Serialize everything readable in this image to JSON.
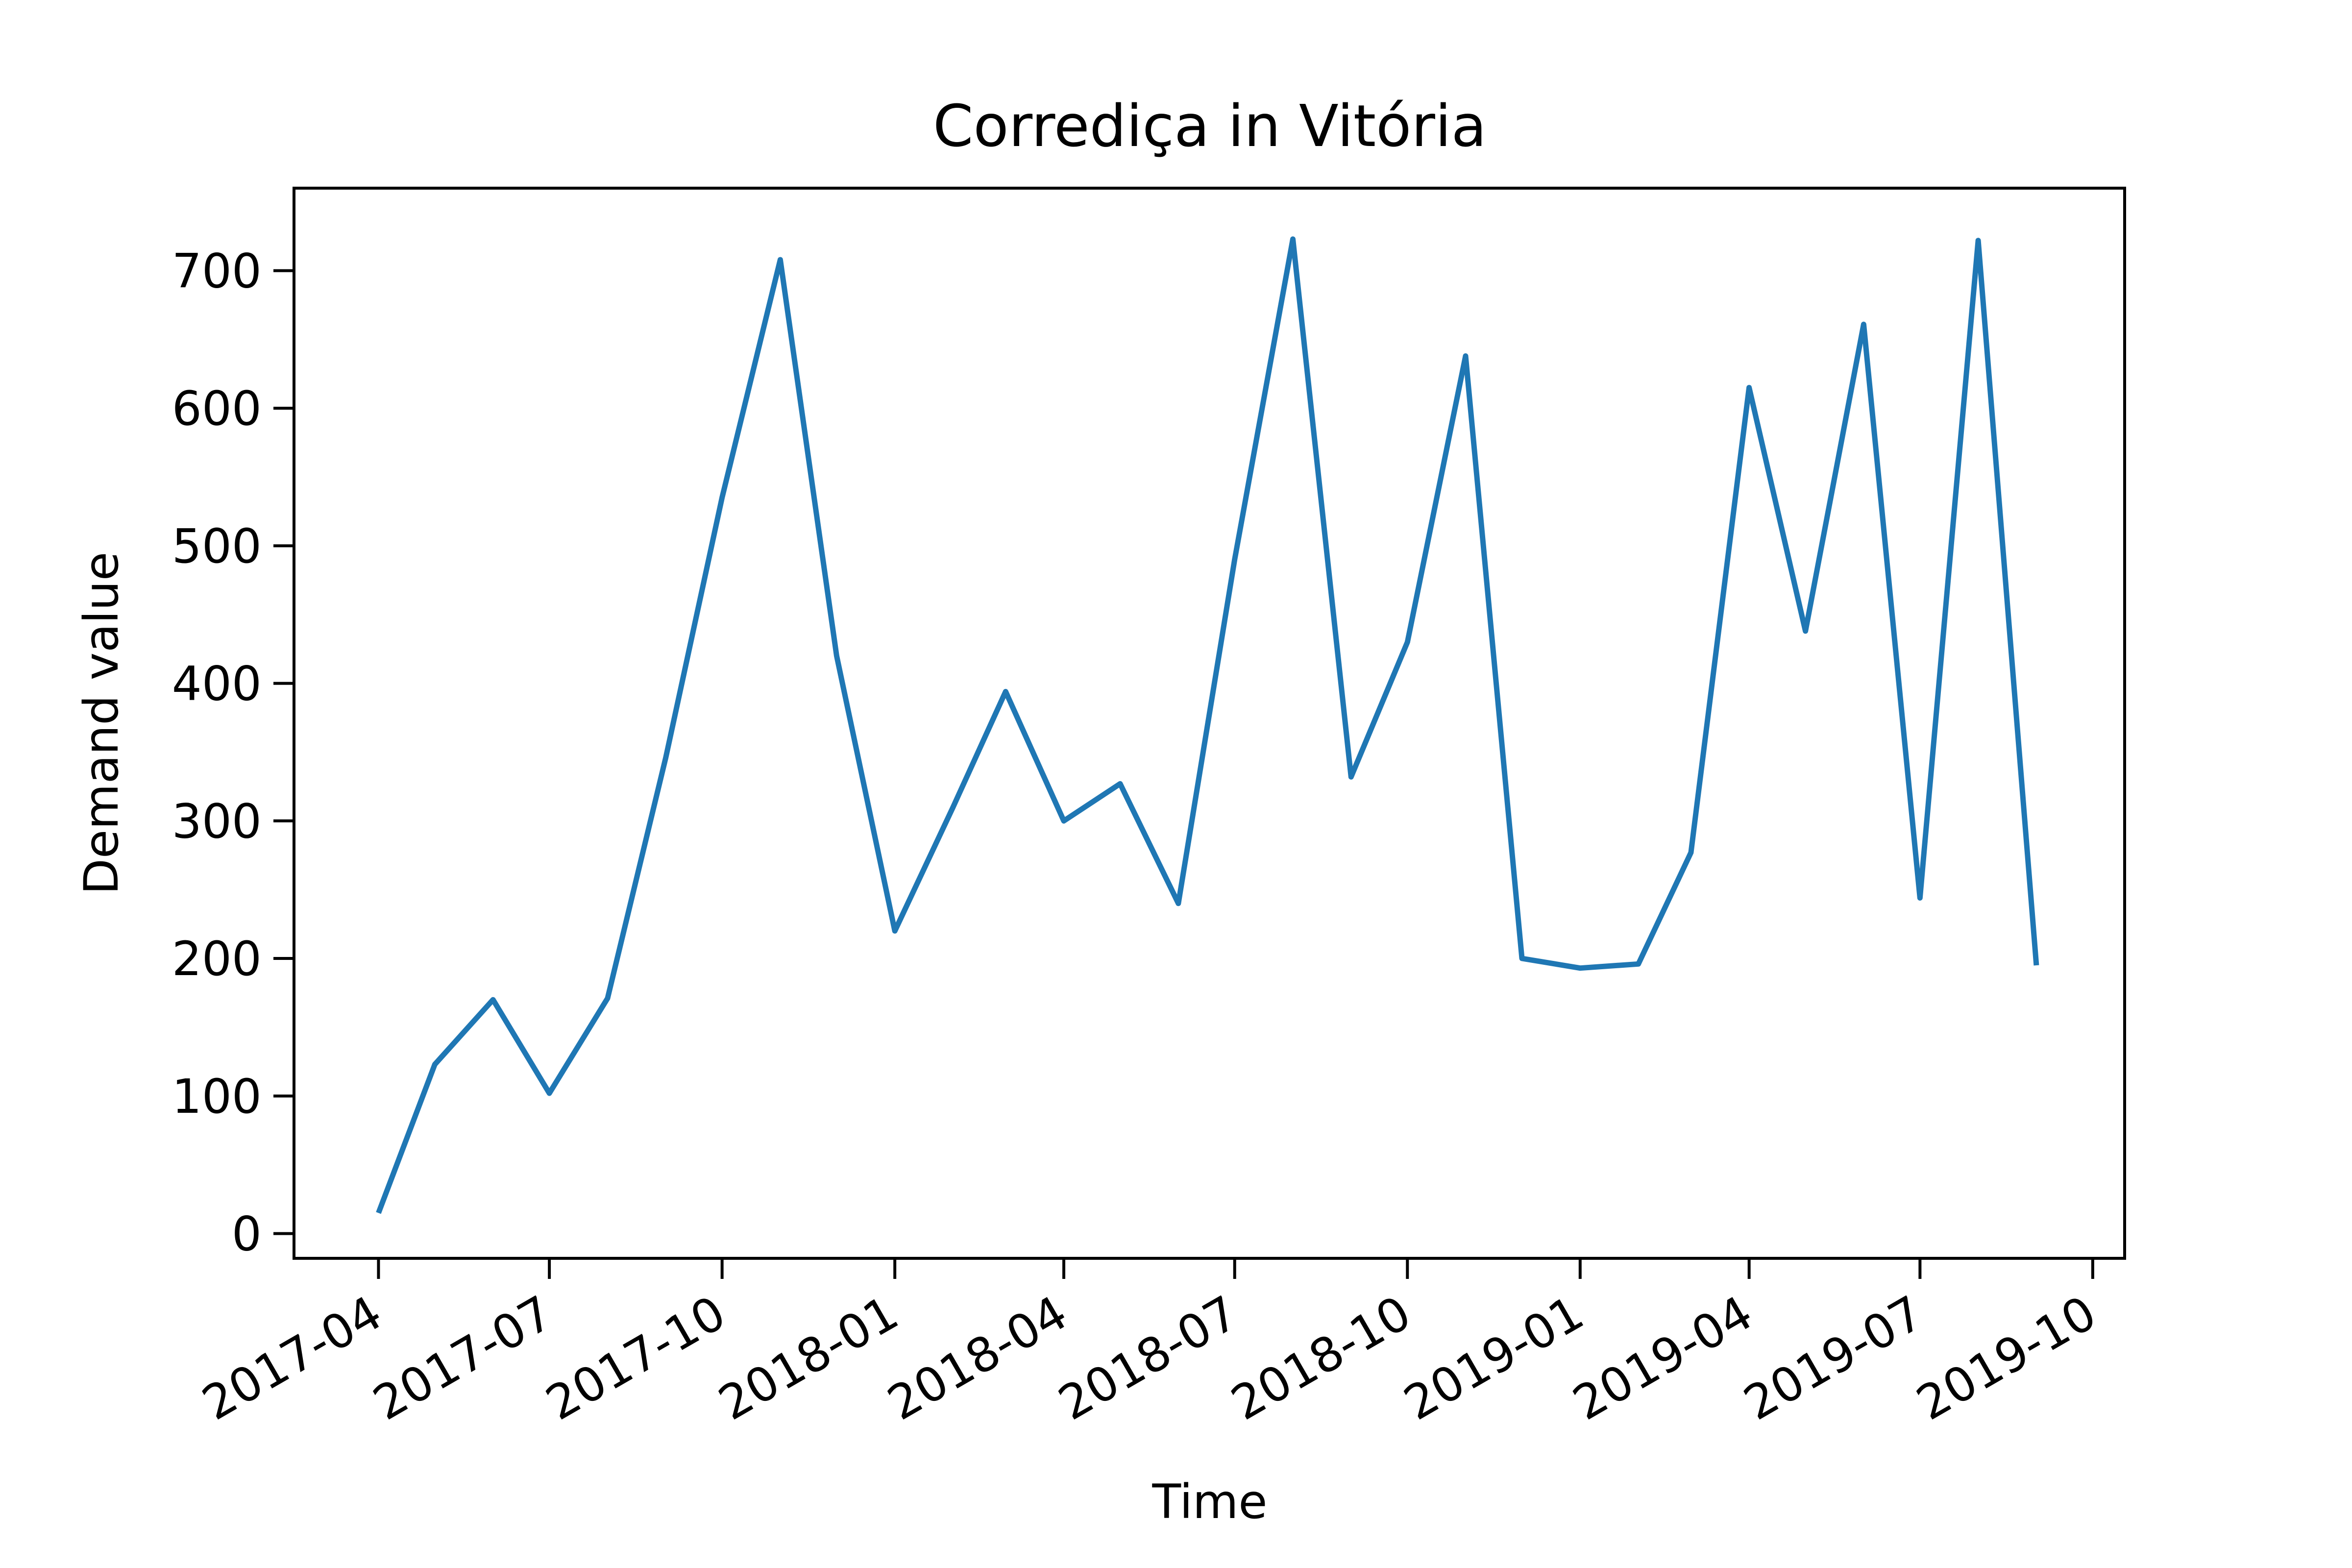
{
  "chart_data": {
    "type": "line",
    "title": "Corrediça in Vitória",
    "xlabel": "Time",
    "ylabel": "Demand value",
    "x_tick_labels": [
      "2017-04",
      "2017-07",
      "2017-10",
      "2018-01",
      "2018-04",
      "2018-07",
      "2018-10",
      "2019-01",
      "2019-04",
      "2019-07",
      "2019-10"
    ],
    "y_ticks": [
      0,
      100,
      200,
      300,
      400,
      500,
      600,
      700
    ],
    "y_tick_labels": [
      "0",
      "100",
      "200",
      "300",
      "400",
      "500",
      "600",
      "700"
    ],
    "ylim": [
      -18,
      760
    ],
    "xlim": [
      "2017-02-15",
      "2019-10-18"
    ],
    "grid": false,
    "line_color": "#1f77b4",
    "series": [
      {
        "x": [
          "2017-04-01",
          "2017-05-01",
          "2017-06-01",
          "2017-07-01",
          "2017-08-01",
          "2017-09-01",
          "2017-10-01",
          "2017-11-01",
          "2017-12-01",
          "2018-01-01",
          "2018-02-01",
          "2018-03-01",
          "2018-04-01",
          "2018-05-01",
          "2018-06-01",
          "2018-07-01",
          "2018-08-01",
          "2018-09-01",
          "2018-10-01",
          "2018-11-01",
          "2018-12-01",
          "2019-01-01",
          "2019-02-01",
          "2019-03-01",
          "2019-04-01",
          "2019-05-01",
          "2019-06-01",
          "2019-07-01",
          "2019-08-01",
          "2019-09-01"
        ],
        "values": [
          15,
          123,
          170,
          102,
          171,
          346,
          535,
          708,
          420,
          220,
          310,
          394,
          300,
          327,
          240,
          490,
          723,
          332,
          430,
          638,
          200,
          193,
          196,
          277,
          615,
          438,
          661,
          244,
          722,
          195
        ]
      }
    ]
  }
}
